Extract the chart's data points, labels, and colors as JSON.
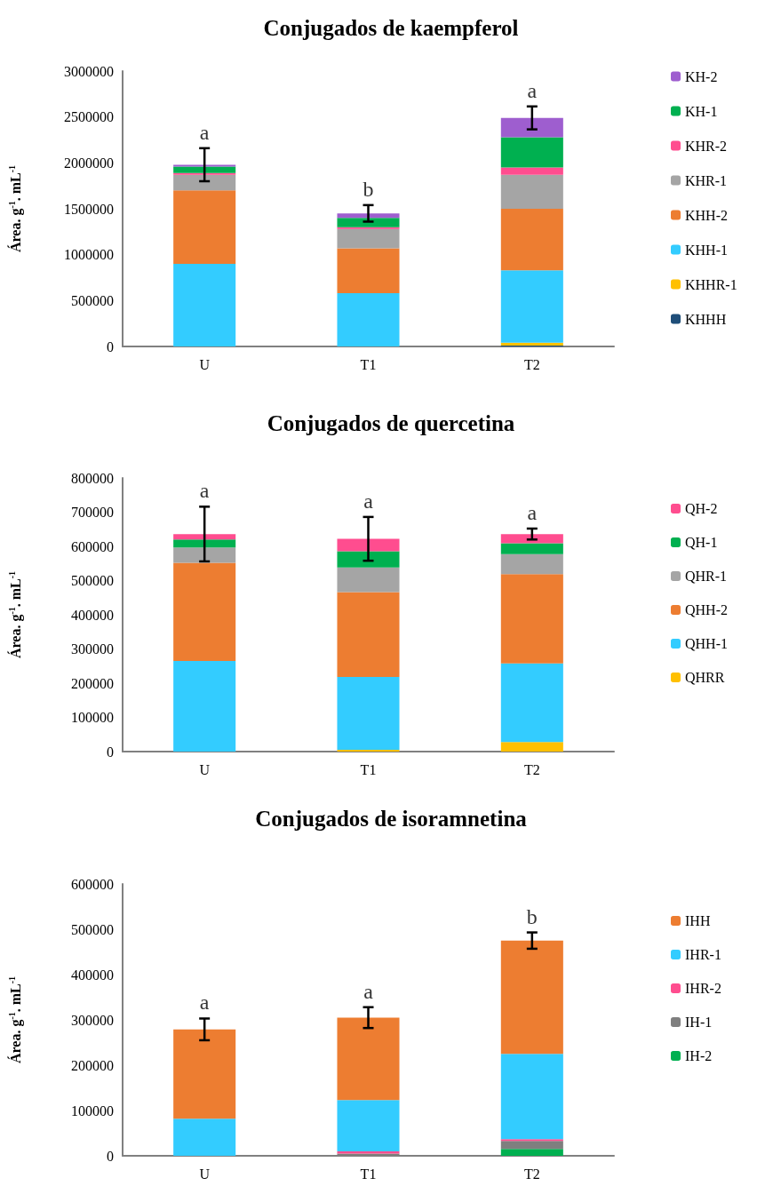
{
  "chart_data": [
    {
      "type": "bar",
      "title": "Conjugados de kaempferol",
      "ylabel": "Área. g$^{-1}$. mL$^{-1}$",
      "categories": [
        "U",
        "T1",
        "T2"
      ],
      "stacked": true,
      "ylim": [
        0,
        3000000
      ],
      "yticks": [
        0,
        500000,
        1000000,
        1500000,
        2000000,
        2500000,
        3000000
      ],
      "grid": false,
      "legend": "right",
      "series": [
        {
          "name": "KHHH",
          "color": "#1f4e79",
          "values": [
            0,
            0,
            10000
          ]
        },
        {
          "name": "KHHR-1",
          "color": "#ffc000",
          "values": [
            0,
            0,
            30000
          ]
        },
        {
          "name": "KHH-1",
          "color": "#33ccff",
          "values": [
            900000,
            580000,
            790000
          ]
        },
        {
          "name": "KHH-2",
          "color": "#ed7d31",
          "values": [
            800000,
            490000,
            670000
          ]
        },
        {
          "name": "KHR-1",
          "color": "#a5a5a5",
          "values": [
            170000,
            210000,
            370000
          ]
        },
        {
          "name": "KHR-2",
          "color": "#ff4d8f",
          "values": [
            20000,
            20000,
            80000
          ]
        },
        {
          "name": "KH-1",
          "color": "#00b050",
          "values": [
            70000,
            100000,
            330000
          ]
        },
        {
          "name": "KH-2",
          "color": "#9e5ecf",
          "values": [
            20000,
            50000,
            210000
          ],
          "errors": [
            180000,
            90000,
            125000
          ]
        }
      ],
      "annotations": [
        "a",
        "b",
        "a"
      ]
    },
    {
      "type": "bar",
      "title": "Conjugados de quercetina",
      "ylabel": "Área. g$^{-1}$. mL$^{-1}$",
      "categories": [
        "U",
        "T1",
        "T2"
      ],
      "stacked": true,
      "ylim": [
        0,
        800000
      ],
      "yticks": [
        0,
        100000,
        200000,
        300000,
        400000,
        500000,
        600000,
        700000,
        800000
      ],
      "grid": false,
      "legend": "right",
      "series": [
        {
          "name": "QHRR",
          "color": "#ffc000",
          "values": [
            0,
            5000,
            28000
          ]
        },
        {
          "name": "QHH-1",
          "color": "#33ccff",
          "values": [
            265000,
            213000,
            230000
          ]
        },
        {
          "name": "QHH-2",
          "color": "#ed7d31",
          "values": [
            287000,
            248000,
            261000
          ]
        },
        {
          "name": "QHR-1",
          "color": "#a5a5a5",
          "values": [
            45000,
            72000,
            58000
          ]
        },
        {
          "name": "QH-1",
          "color": "#00b050",
          "values": [
            23000,
            48000,
            32000
          ]
        },
        {
          "name": "QH-2",
          "color": "#ff4d8f",
          "values": [
            16000,
            36000,
            27000
          ],
          "errors": [
            80000,
            64000,
            16000
          ]
        }
      ],
      "annotations": [
        "a",
        "a",
        "a"
      ]
    },
    {
      "type": "bar",
      "title": "Conjugados de isoramnetina",
      "ylabel": "Área. g$^{-1}$. mL$^{-1}$",
      "categories": [
        "U",
        "T1",
        "T2"
      ],
      "stacked": true,
      "ylim": [
        0,
        600000
      ],
      "yticks": [
        0,
        100000,
        200000,
        300000,
        400000,
        500000,
        600000
      ],
      "grid": false,
      "legend": "right",
      "series": [
        {
          "name": "IH-2",
          "color": "#00b050",
          "values": [
            0,
            0,
            15000
          ]
        },
        {
          "name": "IH-1",
          "color": "#7f7f7f",
          "values": [
            0,
            5000,
            18000
          ]
        },
        {
          "name": "IHR-2",
          "color": "#ff4d8f",
          "values": [
            0,
            5000,
            4000
          ]
        },
        {
          "name": "IHR-1",
          "color": "#33ccff",
          "values": [
            82000,
            113000,
            188000
          ]
        },
        {
          "name": "IHH",
          "color": "#ed7d31",
          "values": [
            197000,
            182000,
            250000
          ],
          "errors": [
            24000,
            23000,
            18000
          ]
        }
      ],
      "annotations": [
        "a",
        "a",
        "b"
      ]
    }
  ]
}
